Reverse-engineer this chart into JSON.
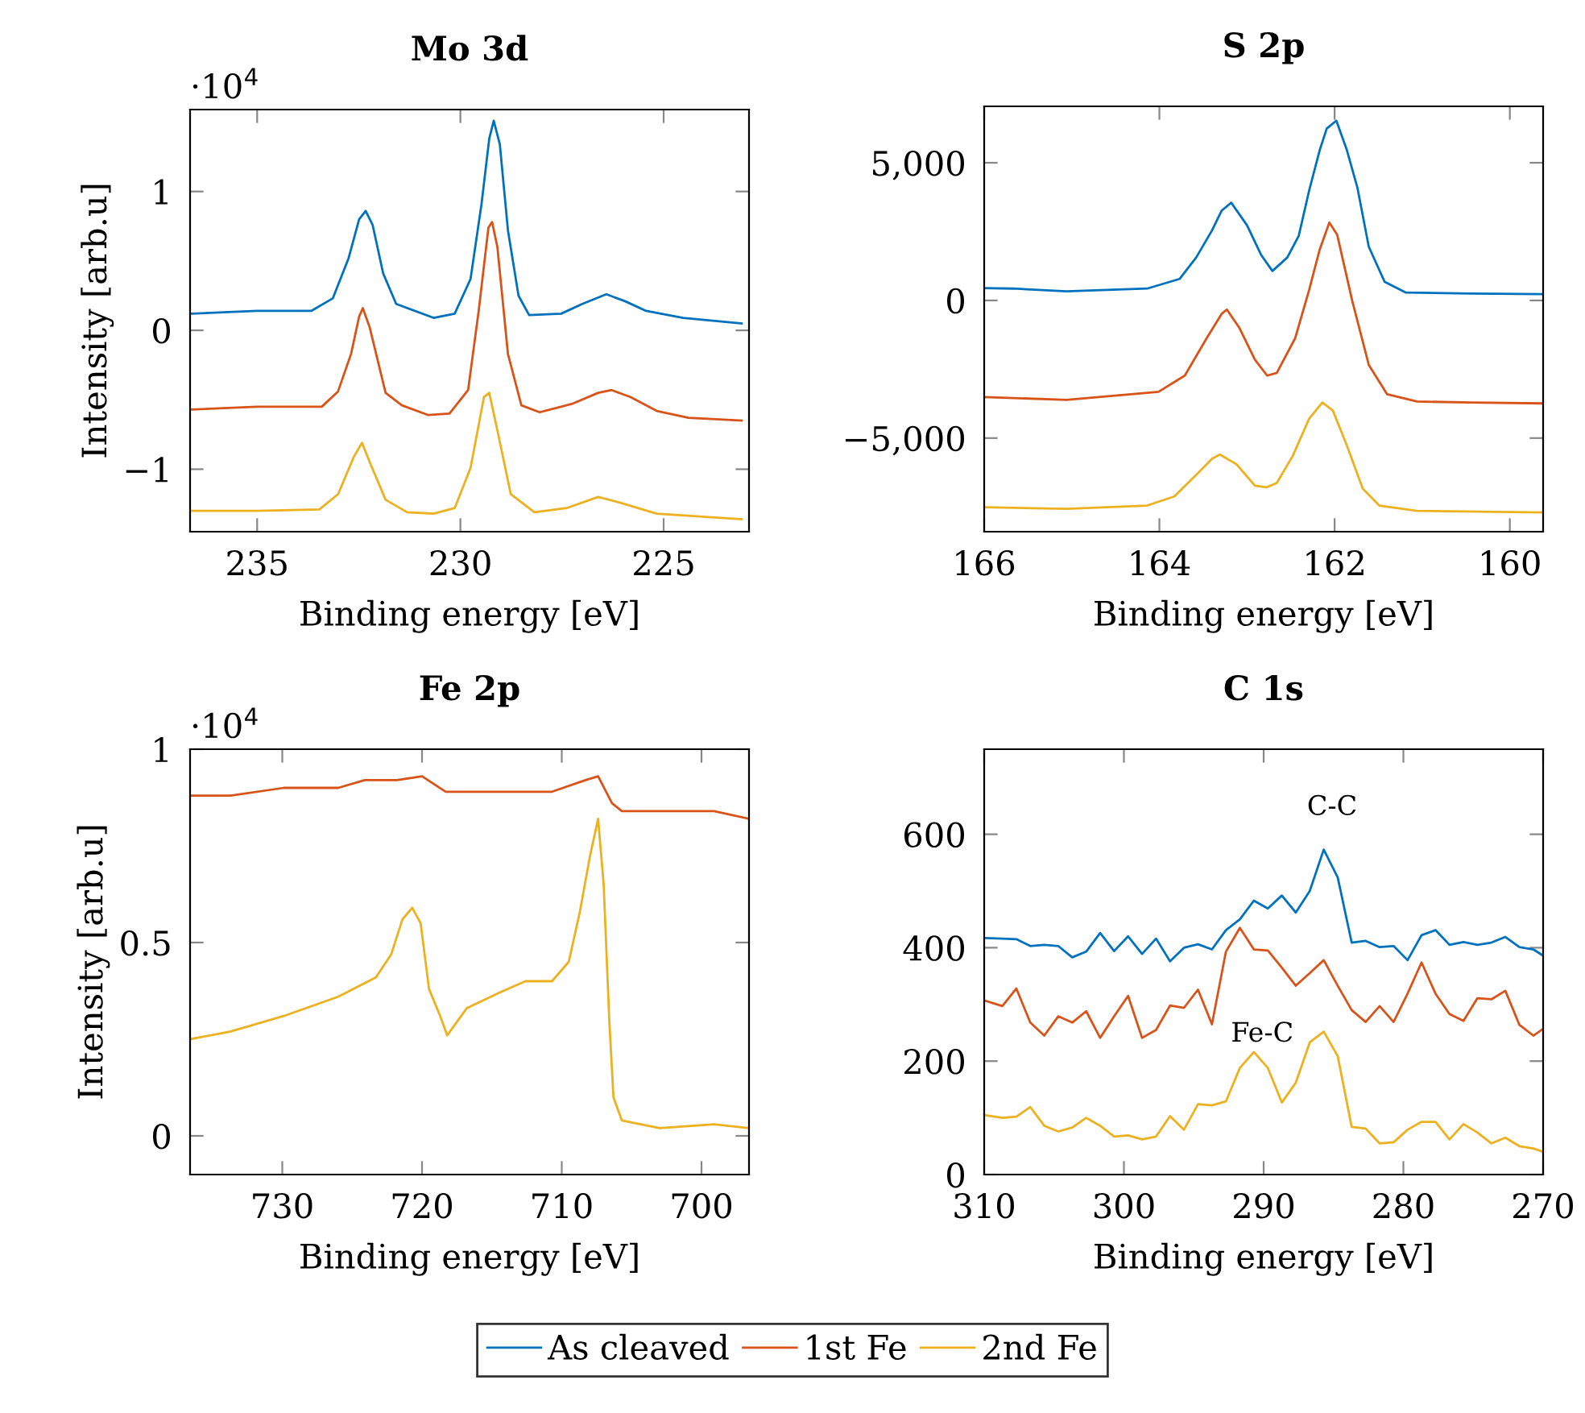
{
  "chart_data": [
    {
      "type": "line",
      "title": "Mo 3d",
      "xlabel": "Binding energy [eV]",
      "ylabel": "Intensity [arb.u]",
      "annotations": [
        "·10$^{4}$"
      ],
      "legend": "bottom",
      "grid": false,
      "marker": "none",
      "xlim": [
        236.65,
        222.9
      ],
      "xticks": [
        235,
        230,
        225
      ],
      "ylim": [
        -1.45,
        1.59
      ],
      "yticks": [
        {
          "value": -1,
          "label": "−1"
        },
        0,
        1
      ],
      "series": [
        {
          "name": "As cleaved",
          "color": "#0072bd",
          "x": [
            236.6,
            235,
            233.67,
            233.14,
            232.75,
            232.49,
            232.33,
            232.16,
            231.9,
            231.58,
            230.66,
            230.14,
            229.75,
            229.48,
            229.29,
            229.18,
            229.03,
            228.83,
            228.57,
            228.31,
            227.52,
            227.0,
            226.41,
            225.95,
            225.43,
            224.52,
            223.08
          ],
          "values": [
            0.12,
            0.14,
            0.14,
            0.23,
            0.52,
            0.8,
            0.86,
            0.76,
            0.41,
            0.19,
            0.09,
            0.12,
            0.37,
            0.91,
            1.38,
            1.51,
            1.34,
            0.72,
            0.25,
            0.11,
            0.12,
            0.19,
            0.26,
            0.21,
            0.14,
            0.09,
            0.05
          ]
        },
        {
          "name": "1st Fe",
          "color": "#d95319",
          "x": [
            236.6,
            235,
            233.41,
            233.01,
            232.69,
            232.49,
            232.4,
            232.23,
            231.84,
            231.44,
            230.79,
            230.27,
            229.81,
            229.55,
            229.31,
            229.22,
            229.09,
            228.83,
            228.5,
            228.05,
            227.26,
            226.61,
            226.28,
            225.82,
            225.17,
            224.39,
            223.08
          ],
          "values": [
            -0.57,
            -0.55,
            -0.55,
            -0.44,
            -0.17,
            0.1,
            0.16,
            0.02,
            -0.45,
            -0.54,
            -0.61,
            -0.6,
            -0.43,
            0.14,
            0.74,
            0.78,
            0.6,
            -0.17,
            -0.54,
            -0.59,
            -0.53,
            -0.45,
            -0.43,
            -0.48,
            -0.58,
            -0.63,
            -0.65
          ]
        },
        {
          "name": "2nd Fe",
          "color": "#edb120",
          "x": [
            236.6,
            235,
            233.47,
            233.01,
            232.62,
            232.42,
            232.23,
            231.84,
            231.31,
            230.66,
            230.14,
            229.75,
            229.42,
            229.29,
            229.09,
            228.76,
            228.18,
            227.39,
            226.61,
            226.08,
            225.17,
            223.08
          ],
          "values": [
            -1.3,
            -1.3,
            -1.29,
            -1.18,
            -0.91,
            -0.81,
            -0.95,
            -1.22,
            -1.31,
            -1.32,
            -1.28,
            -0.99,
            -0.48,
            -0.45,
            -0.72,
            -1.18,
            -1.31,
            -1.28,
            -1.2,
            -1.24,
            -1.32,
            -1.36
          ]
        }
      ]
    },
    {
      "type": "line",
      "title": "S 2p",
      "xlabel": "Binding energy [eV]",
      "grid": false,
      "marker": "none",
      "xlim": [
        166,
        159.62
      ],
      "xticks": [
        166,
        164,
        162,
        160
      ],
      "ylim": [
        -8400,
        7050
      ],
      "yticks": [
        {
          "value": -5000,
          "label": "−5,000"
        },
        0,
        {
          "value": 5000,
          "label": "5,000"
        }
      ],
      "series": [
        {
          "color": "#0072bd",
          "x": [
            166.0,
            165.67,
            165.06,
            164.14,
            163.77,
            163.58,
            163.4,
            163.29,
            163.18,
            163.0,
            162.84,
            162.71,
            162.54,
            162.41,
            162.29,
            162.17,
            162.09,
            161.98,
            161.86,
            161.74,
            161.61,
            161.43,
            161.19,
            160.45,
            159.62
          ],
          "values": [
            450,
            430,
            330,
            430,
            780,
            1560,
            2540,
            3260,
            3550,
            2730,
            1660,
            1070,
            1560,
            2340,
            4000,
            5460,
            6240,
            6530,
            5460,
            4100,
            1950,
            680,
            290,
            250,
            230
          ]
        },
        {
          "color": "#d95319",
          "x": [
            166.0,
            165.06,
            164.01,
            163.71,
            163.46,
            163.29,
            163.23,
            163.09,
            162.91,
            162.77,
            162.66,
            162.45,
            162.29,
            162.17,
            162.06,
            161.97,
            161.8,
            161.61,
            161.4,
            161.06,
            160.45,
            159.62
          ],
          "values": [
            -3510,
            -3610,
            -3320,
            -2730,
            -1370,
            -490,
            -330,
            -980,
            -2150,
            -2730,
            -2630,
            -1370,
            390,
            1850,
            2830,
            2380,
            0,
            -2340,
            -3410,
            -3670,
            -3710,
            -3740
          ]
        },
        {
          "color": "#edb120",
          "x": [
            166.0,
            165.06,
            164.14,
            163.83,
            163.58,
            163.4,
            163.31,
            163.12,
            162.91,
            162.78,
            162.66,
            162.48,
            162.29,
            162.14,
            162.02,
            161.86,
            161.68,
            161.49,
            161.06,
            159.62
          ],
          "values": [
            -7510,
            -7570,
            -7450,
            -7120,
            -6340,
            -5750,
            -5600,
            -5950,
            -6730,
            -6790,
            -6630,
            -5660,
            -4290,
            -3710,
            -4000,
            -5270,
            -6830,
            -7450,
            -7640,
            -7700
          ]
        }
      ]
    },
    {
      "type": "line",
      "title": "Fe 2p",
      "xlabel": "Binding energy [eV]",
      "ylabel": "Intensity [arb.u]",
      "annotations": [
        "·10$^{4}$"
      ],
      "grid": false,
      "marker": "none",
      "xlim": [
        736.6,
        696.6
      ],
      "xticks": [
        730,
        720,
        710,
        700
      ],
      "ylim": [
        -0.1,
        1.0
      ],
      "yticks": [
        0,
        0.5,
        1
      ],
      "series": [
        {
          "color": "#d95319",
          "x": [
            736.6,
            733.7,
            729.9,
            726.0,
            724.1,
            721.8,
            720.0,
            718.3,
            714.5,
            710.7,
            708.3,
            707.4,
            706.4,
            705.7,
            703.0,
            699.1,
            696.6
          ],
          "values": [
            0.88,
            0.88,
            0.9,
            0.9,
            0.92,
            0.92,
            0.93,
            0.89,
            0.89,
            0.89,
            0.92,
            0.93,
            0.86,
            0.84,
            0.84,
            0.84,
            0.82
          ]
        },
        {
          "color": "#edb120",
          "x": [
            736.6,
            733.7,
            729.9,
            726.0,
            723.3,
            722.2,
            721.4,
            720.7,
            720.1,
            719.5,
            718.7,
            718.2,
            716.8,
            714.5,
            712.6,
            710.7,
            709.5,
            708.7,
            708.0,
            707.4,
            707.0,
            706.6,
            706.3,
            705.7,
            703.0,
            699.1,
            696.6
          ],
          "values": [
            0.25,
            0.27,
            0.31,
            0.36,
            0.41,
            0.47,
            0.56,
            0.59,
            0.55,
            0.38,
            0.31,
            0.26,
            0.33,
            0.37,
            0.4,
            0.4,
            0.45,
            0.58,
            0.72,
            0.82,
            0.65,
            0.3,
            0.1,
            0.04,
            0.02,
            0.03,
            0.02
          ]
        }
      ]
    },
    {
      "type": "line",
      "title": "C 1s",
      "xlabel": "Binding energy [eV]",
      "grid": false,
      "marker": "none",
      "annotations": [
        "C-C",
        "Fe-C"
      ],
      "xlim": [
        310,
        270
      ],
      "xticks": [
        310,
        300,
        290,
        280,
        270
      ],
      "ylim": [
        0,
        750
      ],
      "yticks": [
        0,
        200,
        400,
        600
      ],
      "x": [
        310,
        308.7,
        307.7,
        306.7,
        305.7,
        304.7,
        303.7,
        302.7,
        301.7,
        300.7,
        299.7,
        298.7,
        297.7,
        296.7,
        295.7,
        294.7,
        293.7,
        292.7,
        291.7,
        290.7,
        289.7,
        288.7,
        287.7,
        286.7,
        285.7,
        284.7,
        283.7,
        282.7,
        281.7,
        280.7,
        279.7,
        278.7,
        277.7,
        276.7,
        275.7,
        274.7,
        273.7,
        272.7,
        271.7,
        270.7,
        270
      ],
      "series": [
        {
          "color": "#0072bd",
          "values": [
            417,
            416,
            415,
            403,
            405,
            403,
            383,
            393,
            426,
            394,
            420,
            389,
            416,
            376,
            400,
            406,
            397,
            431,
            450,
            483,
            469,
            492,
            462,
            500,
            573,
            524,
            409,
            412,
            401,
            403,
            378,
            422,
            431,
            405,
            410,
            405,
            409,
            419,
            401,
            397,
            386
          ]
        },
        {
          "color": "#d95319",
          "values": [
            307,
            297,
            328,
            268,
            245,
            279,
            268,
            288,
            241,
            279,
            315,
            241,
            255,
            298,
            294,
            326,
            265,
            393,
            435,
            397,
            395,
            365,
            333,
            355,
            378,
            333,
            290,
            269,
            297,
            269,
            319,
            374,
            319,
            283,
            271,
            311,
            309,
            324,
            264,
            245,
            257
          ]
        },
        {
          "color": "#edb120",
          "values": [
            105,
            100,
            102,
            119,
            86,
            76,
            83,
            100,
            86,
            67,
            69,
            62,
            67,
            103,
            79,
            124,
            122,
            129,
            188,
            216,
            188,
            127,
            162,
            233,
            252,
            209,
            84,
            81,
            55,
            57,
            79,
            93,
            93,
            62,
            89,
            74,
            55,
            65,
            50,
            46,
            40
          ]
        }
      ]
    }
  ]
}
